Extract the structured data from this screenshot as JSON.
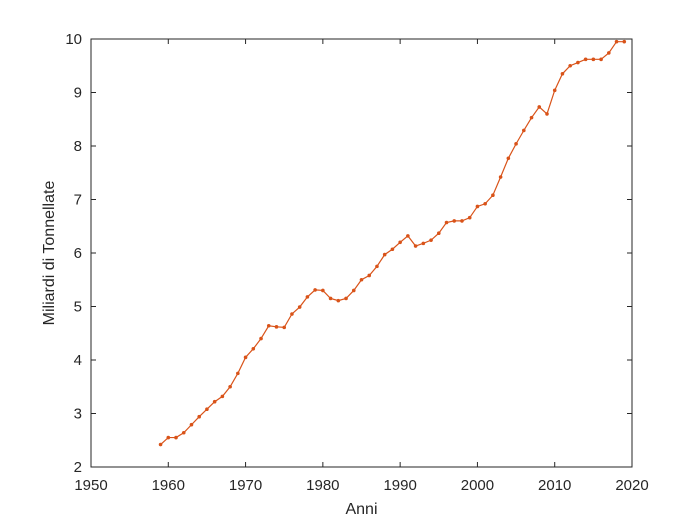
{
  "chart_data": {
    "type": "line",
    "title": "",
    "xlabel": "Anni",
    "ylabel": "Miliardi di Tonnellate",
    "xlim": [
      1950,
      2020
    ],
    "ylim": [
      2,
      10
    ],
    "xticks": [
      1950,
      1960,
      1970,
      1980,
      1990,
      2000,
      2010,
      2020
    ],
    "yticks": [
      2,
      3,
      4,
      5,
      6,
      7,
      8,
      9,
      10
    ],
    "xtick_labels": [
      "1950",
      "1960",
      "1970",
      "1980",
      "1990",
      "2000",
      "2010",
      "2020"
    ],
    "ytick_labels": [
      "2",
      "3",
      "4",
      "5",
      "6",
      "7",
      "8",
      "9",
      "10"
    ],
    "grid": false,
    "legend": "none",
    "series": [
      {
        "color": "#d95319",
        "x": [
          1959,
          1960,
          1961,
          1962,
          1963,
          1964,
          1965,
          1966,
          1967,
          1968,
          1969,
          1970,
          1971,
          1972,
          1973,
          1974,
          1975,
          1976,
          1977,
          1978,
          1979,
          1980,
          1981,
          1982,
          1983,
          1984,
          1985,
          1986,
          1987,
          1988,
          1989,
          1990,
          1991,
          1992,
          1993,
          1994,
          1995,
          1996,
          1997,
          1998,
          1999,
          2000,
          2001,
          2002,
          2003,
          2004,
          2005,
          2006,
          2007,
          2008,
          2009,
          2010,
          2011,
          2012,
          2013,
          2014,
          2015,
          2016,
          2017,
          2018,
          2019
        ],
        "y": [
          2.42,
          2.55,
          2.55,
          2.64,
          2.79,
          2.94,
          3.08,
          3.22,
          3.32,
          3.5,
          3.75,
          4.05,
          4.21,
          4.4,
          4.64,
          4.62,
          4.61,
          4.86,
          4.99,
          5.18,
          5.31,
          5.3,
          5.15,
          5.11,
          5.15,
          5.3,
          5.5,
          5.58,
          5.75,
          5.97,
          6.07,
          6.2,
          6.32,
          6.13,
          6.18,
          6.24,
          6.37,
          6.57,
          6.6,
          6.6,
          6.66,
          6.87,
          6.92,
          7.08,
          7.42,
          7.77,
          8.04,
          8.29,
          8.53,
          8.73,
          8.6,
          9.04,
          9.35,
          9.5,
          9.56,
          9.62,
          9.62,
          9.62,
          9.74,
          9.95,
          9.95
        ]
      }
    ]
  }
}
